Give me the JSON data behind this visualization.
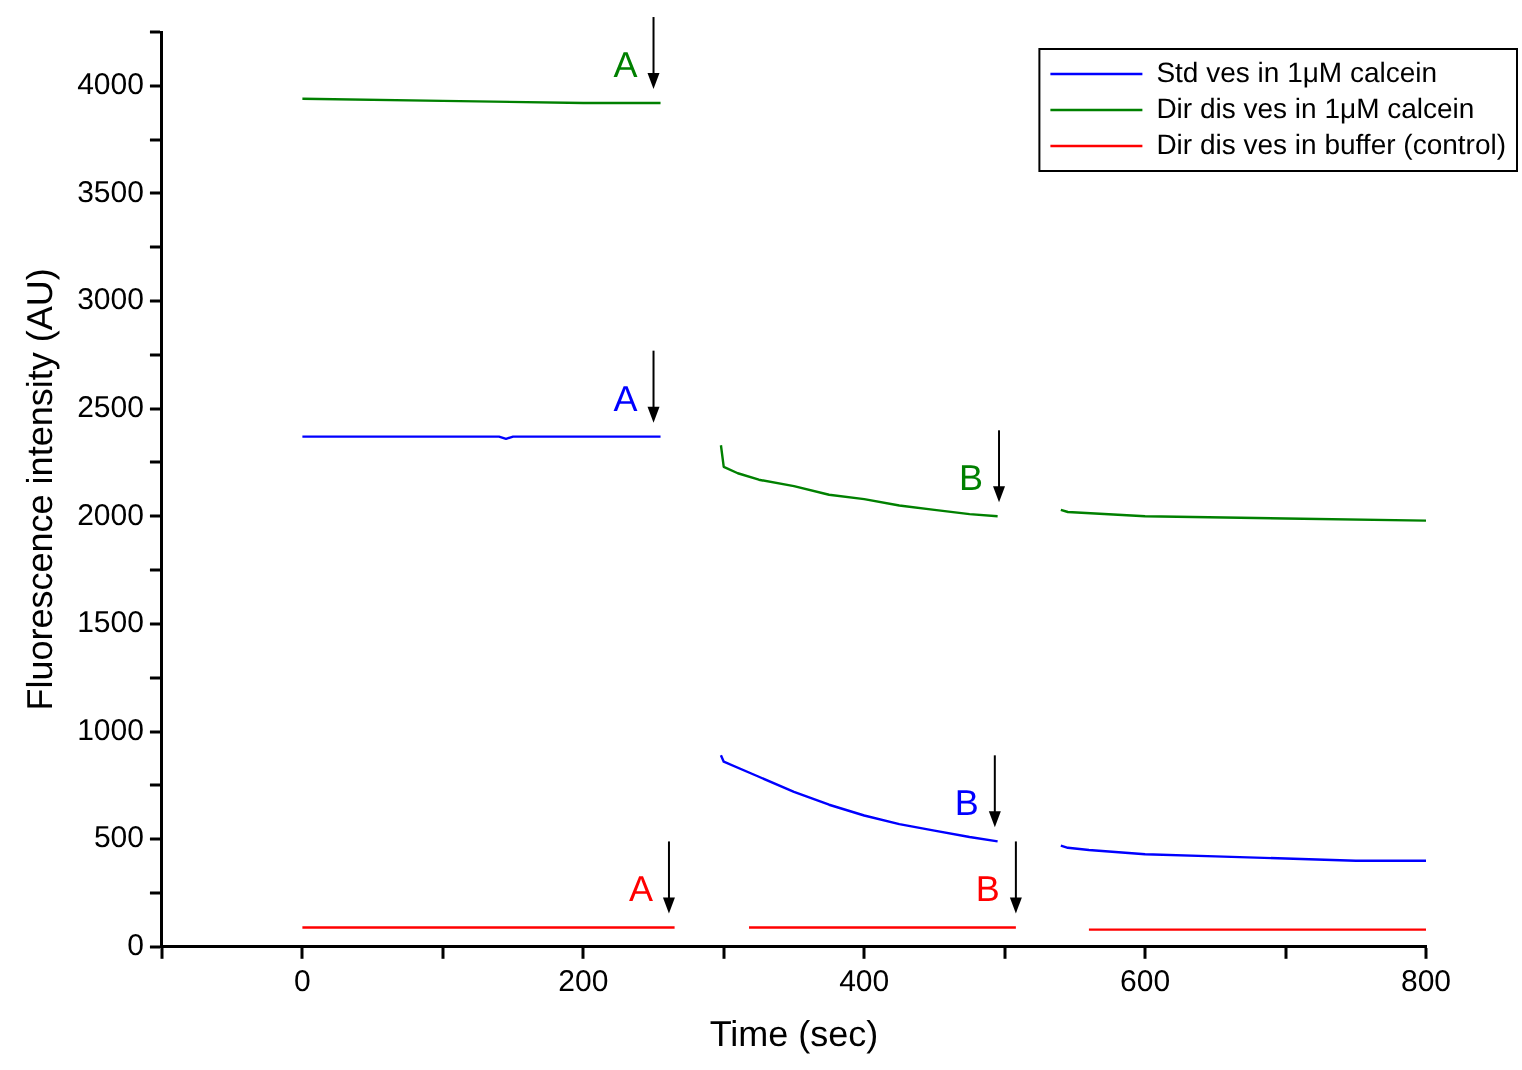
{
  "chart_data": {
    "type": "line",
    "xlabel": "Time (sec)",
    "ylabel": "Fluorescence intensity (AU)",
    "xlim": [
      -100,
      800
    ],
    "xticks": [
      {
        "value": -100,
        "label": null
      },
      0,
      {
        "value": 100,
        "label": null
      },
      200,
      {
        "value": 300,
        "label": null
      },
      400,
      {
        "value": 500,
        "label": null
      },
      600,
      {
        "value": 700,
        "label": null
      },
      800
    ],
    "ylim": [
      0,
      4250
    ],
    "yticks": [
      0,
      {
        "value": 250,
        "label": null
      },
      500,
      {
        "value": 750,
        "label": null
      },
      1000,
      {
        "value": 1250,
        "label": null
      },
      1500,
      {
        "value": 1750,
        "label": null
      },
      2000,
      {
        "value": 2250,
        "label": null
      },
      2500,
      {
        "value": 2750,
        "label": null
      },
      3000,
      {
        "value": 3250,
        "label": null
      },
      3500,
      {
        "value": 3750,
        "label": null
      },
      4000,
      {
        "value": 4250,
        "label": null
      }
    ],
    "grid": false,
    "legend": "top right",
    "marker": "none",
    "line_style": "solid",
    "series": [
      {
        "name": "Std ves in 1μM calcein",
        "color": "#0000ff",
        "x": [
          0,
          100,
          140,
          145,
          150,
          200,
          255
        ],
        "values": [
          2370,
          2370,
          2370,
          2360,
          2370,
          2370,
          2370
        ]
      },
      {
        "name": "Dir dis ves in 1μM calcein",
        "color": "#008000",
        "x": [
          0,
          100,
          200,
          255
        ],
        "values": [
          3940,
          3930,
          3920,
          3920
        ]
      },
      {
        "name": "Dir dis ves in buffer (control)",
        "color": "#ff0000",
        "x": [
          0,
          265
        ],
        "values": [
          90,
          90
        ]
      },
      {
        "color": "#0000ff",
        "x": [
          298,
          300,
          325,
          350,
          375,
          400,
          425,
          450,
          475,
          495
        ],
        "values": [
          890,
          860,
          790,
          720,
          660,
          610,
          570,
          540,
          510,
          490
        ]
      },
      {
        "color": "#0000ff",
        "x": [
          540,
          545,
          560,
          600,
          650,
          700,
          750,
          800
        ],
        "values": [
          470,
          460,
          450,
          430,
          420,
          410,
          400,
          400
        ]
      },
      {
        "color": "#008000",
        "x": [
          298,
          300,
          310,
          325,
          350,
          375,
          400,
          425,
          450,
          475,
          495
        ],
        "values": [
          2330,
          2230,
          2200,
          2170,
          2140,
          2100,
          2080,
          2050,
          2030,
          2010,
          2000
        ]
      },
      {
        "color": "#008000",
        "x": [
          540,
          545,
          600,
          700,
          800
        ],
        "values": [
          2030,
          2020,
          2000,
          1990,
          1980
        ]
      },
      {
        "color": "#ff0000",
        "x": [
          318,
          508
        ],
        "values": [
          90,
          90
        ]
      },
      {
        "color": "#ff0000",
        "x": [
          560,
          800
        ],
        "values": [
          80,
          80
        ]
      }
    ],
    "annotations": [
      {
        "text": "A",
        "x": 250,
        "y": 3920
      },
      {
        "text": "A",
        "x": 250,
        "y": 2370
      },
      {
        "text": "A",
        "x": 261,
        "y": 90
      },
      {
        "text": "B",
        "x": 496,
        "y": 2000
      },
      {
        "text": "B",
        "x": 493,
        "y": 490
      },
      {
        "text": "B",
        "x": 508,
        "y": 90
      }
    ]
  }
}
